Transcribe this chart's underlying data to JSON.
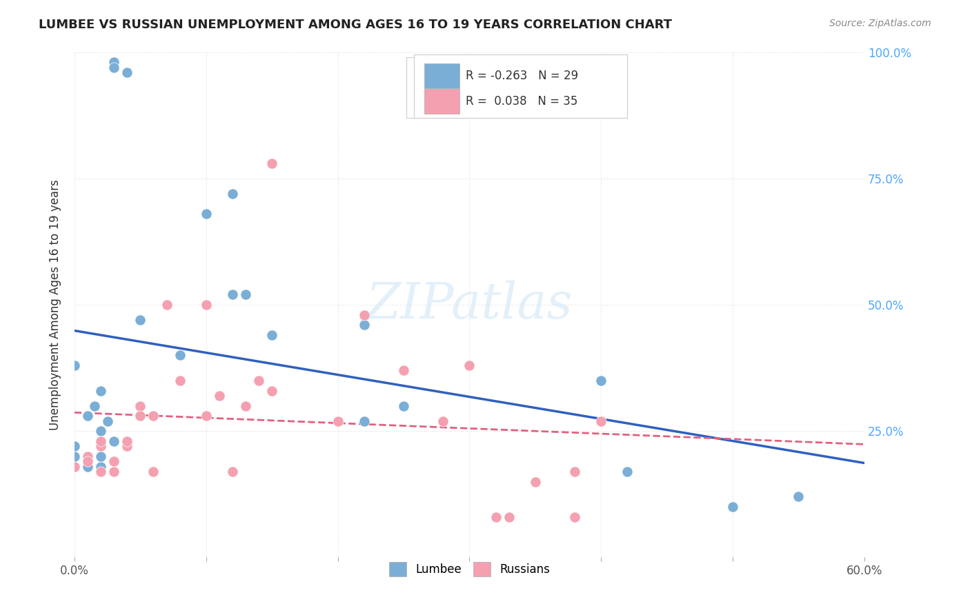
{
  "title": "LUMBEE VS RUSSIAN UNEMPLOYMENT AMONG AGES 16 TO 19 YEARS CORRELATION CHART",
  "source": "Source: ZipAtlas.com",
  "xlabel": "",
  "ylabel": "Unemployment Among Ages 16 to 19 years",
  "xlim": [
    0.0,
    0.6
  ],
  "ylim": [
    0.0,
    1.0
  ],
  "xticks": [
    0.0,
    0.1,
    0.2,
    0.3,
    0.4,
    0.5,
    0.6
  ],
  "yticks": [
    0.0,
    0.25,
    0.5,
    0.75,
    1.0
  ],
  "xtick_labels": [
    "0.0%",
    "",
    "",
    "",
    "",
    "",
    "60.0%"
  ],
  "ytick_labels": [
    "",
    "25.0%",
    "50.0%",
    "75.0%",
    "100.0%"
  ],
  "legend_blue_label": "R = -0.263   N = 29",
  "legend_pink_label": "R =  0.038   N = 35",
  "blue_color": "#7aaed6",
  "pink_color": "#f4a0b0",
  "blue_line_color": "#3060c0",
  "pink_line_color": "#e06080",
  "watermark": "ZIPatlas",
  "lumbee_x": [
    0.0,
    0.02,
    0.03,
    0.01,
    0.015,
    0.025,
    0.02,
    0.05,
    0.12,
    0.1,
    0.13,
    0.15,
    0.22,
    0.22,
    0.25,
    0.12,
    0.08,
    0.04,
    0.03,
    0.03,
    0.02,
    0.02,
    0.01,
    0.0,
    0.0,
    0.4,
    0.55,
    0.5,
    0.42
  ],
  "lumbee_y": [
    0.2,
    0.25,
    0.23,
    0.28,
    0.3,
    0.27,
    0.18,
    0.47,
    0.72,
    0.68,
    0.52,
    0.44,
    0.46,
    0.27,
    0.3,
    0.52,
    0.4,
    0.96,
    0.98,
    0.97,
    0.33,
    0.2,
    0.18,
    0.38,
    0.22,
    0.35,
    0.12,
    0.1,
    0.17
  ],
  "russian_x": [
    0.0,
    0.01,
    0.01,
    0.02,
    0.02,
    0.02,
    0.03,
    0.03,
    0.04,
    0.04,
    0.05,
    0.05,
    0.06,
    0.06,
    0.07,
    0.08,
    0.1,
    0.1,
    0.11,
    0.12,
    0.13,
    0.14,
    0.15,
    0.15,
    0.2,
    0.22,
    0.25,
    0.28,
    0.3,
    0.32,
    0.33,
    0.35,
    0.38,
    0.38,
    0.4
  ],
  "russian_y": [
    0.18,
    0.2,
    0.19,
    0.22,
    0.23,
    0.17,
    0.17,
    0.19,
    0.22,
    0.23,
    0.3,
    0.28,
    0.17,
    0.28,
    0.5,
    0.35,
    0.5,
    0.28,
    0.32,
    0.17,
    0.3,
    0.35,
    0.33,
    0.78,
    0.27,
    0.48,
    0.37,
    0.27,
    0.38,
    0.08,
    0.08,
    0.15,
    0.08,
    0.17,
    0.27
  ]
}
